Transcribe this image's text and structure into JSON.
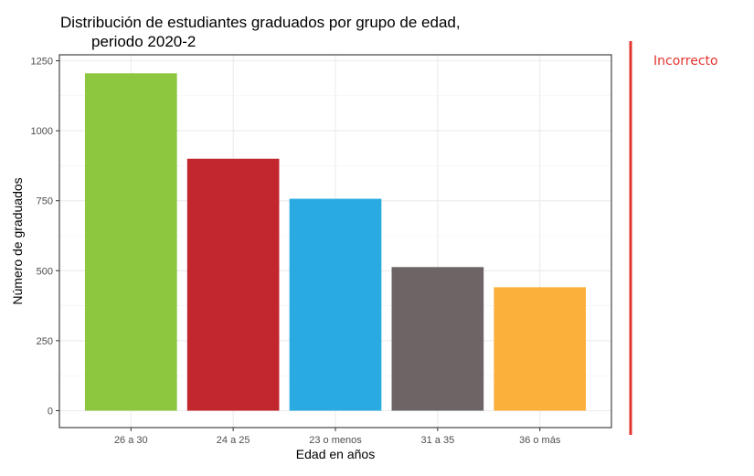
{
  "chart_data": {
    "type": "bar",
    "title": "Distribución de estudiantes graduados por grupo de edad,",
    "subtitle": "periodo 2020-2",
    "xlabel": "Edad en años",
    "ylabel": "Número de graduados",
    "categories": [
      "26 a 30",
      "24 a 25",
      "23 o menos",
      "31 a 35",
      "36 o más"
    ],
    "values": [
      1205,
      900,
      757,
      513,
      441
    ],
    "colors": [
      "#8dc63f",
      "#c1272d",
      "#29abe2",
      "#6d6465",
      "#fbb03b"
    ],
    "ylim": [
      0,
      1300
    ],
    "yticks": [
      0,
      250,
      500,
      750,
      1000,
      1250
    ],
    "ytick_labels": [
      "0",
      "250",
      "500",
      "750",
      "1000",
      "1250"
    ],
    "grid": true,
    "legend": "none"
  },
  "annotation": {
    "label": "Incorrecto",
    "color": "#e3342f"
  }
}
